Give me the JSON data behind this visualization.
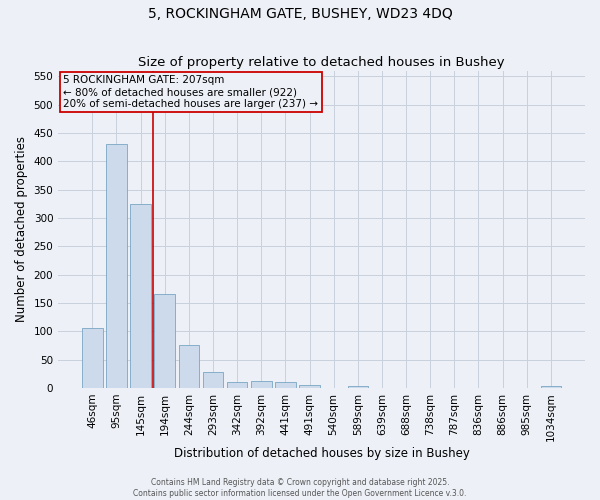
{
  "title1": "5, ROCKINGHAM GATE, BUSHEY, WD23 4DQ",
  "title2": "Size of property relative to detached houses in Bushey",
  "xlabel": "Distribution of detached houses by size in Bushey",
  "ylabel": "Number of detached properties",
  "categories": [
    "46sqm",
    "95sqm",
    "145sqm",
    "194sqm",
    "244sqm",
    "293sqm",
    "342sqm",
    "392sqm",
    "441sqm",
    "491sqm",
    "540sqm",
    "589sqm",
    "639sqm",
    "688sqm",
    "738sqm",
    "787sqm",
    "836sqm",
    "886sqm",
    "985sqm",
    "1034sqm"
  ],
  "values": [
    105,
    430,
    325,
    165,
    75,
    28,
    11,
    12,
    10,
    5,
    0,
    4,
    0,
    0,
    0,
    0,
    0,
    0,
    0,
    3
  ],
  "bar_color": "#ccdaeb",
  "bar_edge_color": "#6699bb",
  "vline_x_index": 3,
  "vline_color": "#cc0000",
  "ylim": [
    0,
    560
  ],
  "yticks": [
    0,
    50,
    100,
    150,
    200,
    250,
    300,
    350,
    400,
    450,
    500,
    550
  ],
  "annotation_title": "5 ROCKINGHAM GATE: 207sqm",
  "annotation_line1": "← 80% of detached houses are smaller (922)",
  "annotation_line2": "20% of semi-detached houses are larger (237) →",
  "annotation_box_color": "#cc0000",
  "grid_color": "#c8d0dc",
  "bg_color": "#edf1f7",
  "footer1": "Contains HM Land Registry data © Crown copyright and database right 2025.",
  "footer2": "Contains public sector information licensed under the Open Government Licence v.3.0.",
  "title1_fontsize": 10,
  "title2_fontsize": 9.5,
  "axis_label_fontsize": 8.5,
  "tick_fontsize": 7.5,
  "annotation_fontsize": 7.5,
  "footer_fontsize": 5.5
}
